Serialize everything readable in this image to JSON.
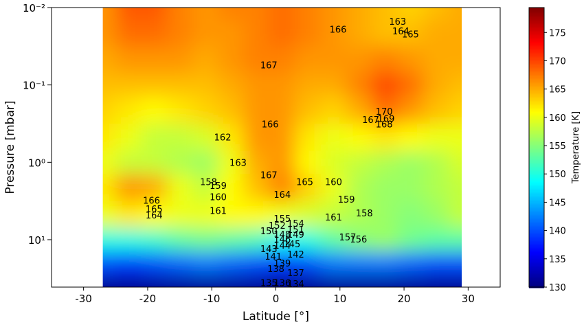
{
  "chart_data": {
    "type": "contour",
    "xlabel": "Latitude [°]",
    "ylabel": "Pressure [mbar]",
    "colorbar_label": "Temperature [K]",
    "colormap": "jet",
    "xlim": [
      -35,
      35
    ],
    "xticks": [
      -30,
      -20,
      -10,
      0,
      10,
      20,
      30
    ],
    "ylim": [
      0.01,
      41
    ],
    "y_log": true,
    "y_inverted": true,
    "yticks": [
      {
        "value": 0.01,
        "label": "10⁻²"
      },
      {
        "value": 0.1,
        "label": "10⁻¹"
      },
      {
        "value": 1,
        "label": "10⁰"
      },
      {
        "value": 10,
        "label": "10¹"
      }
    ],
    "clim": [
      130,
      179.4
    ],
    "cticks": [
      130,
      135,
      140,
      145,
      150,
      155,
      160,
      165,
      170,
      175
    ],
    "x": [
      -27,
      -23,
      -19,
      -15,
      -11,
      -7,
      -3,
      1,
      5,
      9,
      13,
      17,
      21,
      25,
      29
    ],
    "y": [
      0.01,
      0.02,
      0.05,
      0.1,
      0.2,
      0.5,
      1,
      2,
      5,
      10,
      20,
      40
    ],
    "z": [
      [
        166,
        169,
        169,
        167,
        166,
        167,
        167,
        168,
        167,
        166,
        165,
        164,
        163,
        164,
        165
      ],
      [
        166,
        168,
        168,
        167,
        166,
        166,
        167,
        168,
        167,
        166,
        165,
        164,
        164,
        165,
        165
      ],
      [
        165,
        166,
        166,
        166,
        165,
        166,
        167,
        167,
        166,
        166,
        166,
        167,
        166,
        165,
        165
      ],
      [
        164,
        164,
        164,
        164,
        164,
        165,
        166,
        166,
        165,
        165,
        167,
        170,
        168,
        165,
        164
      ],
      [
        163,
        162,
        161,
        162,
        163,
        164,
        166,
        166,
        164,
        163,
        165,
        168,
        166,
        164,
        163
      ],
      [
        162,
        160,
        158,
        158,
        159,
        162,
        166,
        166,
        162,
        160,
        161,
        162,
        161,
        160,
        160
      ],
      [
        160,
        158,
        158,
        157,
        156,
        160,
        165,
        166,
        161,
        159,
        158,
        157,
        156,
        157,
        159
      ],
      [
        162,
        166,
        165,
        160,
        158,
        161,
        164,
        167,
        163,
        160,
        157,
        156,
        156,
        157,
        158
      ],
      [
        160,
        162,
        161,
        160,
        160,
        161,
        161,
        160,
        159,
        158,
        157,
        156,
        155,
        156,
        158
      ],
      [
        150,
        150,
        151,
        153,
        154,
        153,
        152,
        149,
        150,
        153,
        155,
        156,
        154,
        153,
        153
      ],
      [
        140,
        139,
        140,
        141,
        142,
        141,
        140,
        139,
        140,
        142,
        142,
        142,
        141,
        140,
        140
      ],
      [
        131,
        131,
        131,
        131,
        131,
        131,
        131,
        131,
        131,
        131,
        131,
        131,
        131,
        131,
        131
      ]
    ],
    "contour_labels": [
      {
        "value": 166,
        "lat": 9.7,
        "p": 0.019
      },
      {
        "value": 163,
        "lat": 19,
        "p": 0.015
      },
      {
        "value": 164,
        "lat": 19.5,
        "p": 0.02
      },
      {
        "value": 165,
        "lat": 21,
        "p": 0.022
      },
      {
        "value": 167,
        "lat": -1.1,
        "p": 0.055
      },
      {
        "value": 170,
        "lat": 16.9,
        "p": 0.22
      },
      {
        "value": 167,
        "lat": 14.8,
        "p": 0.28
      },
      {
        "value": 169,
        "lat": 17.2,
        "p": 0.27
      },
      {
        "value": 168,
        "lat": 16.9,
        "p": 0.32
      },
      {
        "value": 166,
        "lat": -0.9,
        "p": 0.32
      },
      {
        "value": 162,
        "lat": -8.3,
        "p": 0.47
      },
      {
        "value": 163,
        "lat": -5.9,
        "p": 1.0
      },
      {
        "value": 167,
        "lat": -1.1,
        "p": 1.45
      },
      {
        "value": 165,
        "lat": 4.5,
        "p": 1.78
      },
      {
        "value": 160,
        "lat": 9,
        "p": 1.78
      },
      {
        "value": 158,
        "lat": -10.5,
        "p": 1.78
      },
      {
        "value": 159,
        "lat": -9,
        "p": 2.0
      },
      {
        "value": 166,
        "lat": -19.4,
        "p": 3.1
      },
      {
        "value": 160,
        "lat": -9,
        "p": 2.8
      },
      {
        "value": 164,
        "lat": 1,
        "p": 2.6
      },
      {
        "value": 159,
        "lat": 11,
        "p": 3.0
      },
      {
        "value": 165,
        "lat": -19,
        "p": 4.0
      },
      {
        "value": 164,
        "lat": -19,
        "p": 4.8
      },
      {
        "value": 161,
        "lat": -9,
        "p": 4.2
      },
      {
        "value": 161,
        "lat": 9,
        "p": 5.1
      },
      {
        "value": 158,
        "lat": 13.8,
        "p": 4.5
      },
      {
        "value": 155,
        "lat": 1,
        "p": 5.3
      },
      {
        "value": 154,
        "lat": 3.1,
        "p": 6.1
      },
      {
        "value": 152,
        "lat": 0.2,
        "p": 6.5
      },
      {
        "value": 151,
        "lat": 3.1,
        "p": 7.4
      },
      {
        "value": 150,
        "lat": -1.1,
        "p": 7.7
      },
      {
        "value": 149,
        "lat": 3.1,
        "p": 8.5
      },
      {
        "value": 148,
        "lat": 1,
        "p": 8.5
      },
      {
        "value": 157,
        "lat": 11.2,
        "p": 9.2
      },
      {
        "value": 156,
        "lat": 12.9,
        "p": 9.8
      },
      {
        "value": 146,
        "lat": 1,
        "p": 9.8
      },
      {
        "value": 145,
        "lat": 2.5,
        "p": 11.3
      },
      {
        "value": 144,
        "lat": 1,
        "p": 11.8
      },
      {
        "value": 143,
        "lat": -1.1,
        "p": 13
      },
      {
        "value": 142,
        "lat": 3.1,
        "p": 15.4
      },
      {
        "value": 141,
        "lat": -0.4,
        "p": 16.4
      },
      {
        "value": 139,
        "lat": 1,
        "p": 20
      },
      {
        "value": 138,
        "lat": 0,
        "p": 23.7
      },
      {
        "value": 137,
        "lat": 3.1,
        "p": 26.8
      },
      {
        "value": 135,
        "lat": -1.1,
        "p": 35.8
      },
      {
        "value": 136,
        "lat": 1,
        "p": 35.8
      },
      {
        "value": 134,
        "lat": 3.1,
        "p": 37
      }
    ]
  }
}
